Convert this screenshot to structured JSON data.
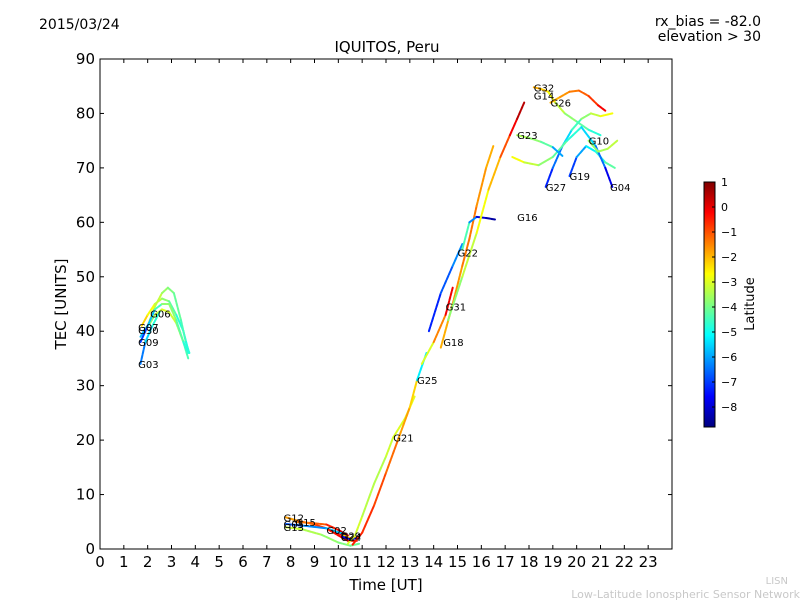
{
  "header": {
    "date": "2015/03/24",
    "rx_bias": "rx_bias = -82.0",
    "elevation": "elevation > 30"
  },
  "footer": {
    "network_short": "LISN",
    "network_full": "Low-Latitude Ionospheric Sensor Network"
  },
  "chart_data": {
    "type": "scatter",
    "title": "IQUITOS, Peru",
    "xlabel": "Time [UT]",
    "ylabel": "TEC [UNITS]",
    "xlim": [
      0,
      24
    ],
    "ylim": [
      0,
      90
    ],
    "xticks": [
      "0",
      "1",
      "2",
      "3",
      "4",
      "5",
      "6",
      "7",
      "8",
      "9",
      "10",
      "11",
      "12",
      "13",
      "14",
      "15",
      "16",
      "17",
      "18",
      "19",
      "20",
      "21",
      "22",
      "23"
    ],
    "yticks": [
      "0",
      "10",
      "20",
      "30",
      "40",
      "50",
      "60",
      "70",
      "80",
      "90"
    ],
    "colorbar": {
      "label": "Latitude",
      "range": [
        -8.8,
        1.0
      ],
      "ticks": [
        "1",
        "0",
        "−1",
        "−2",
        "−3",
        "−4",
        "−5",
        "−6",
        "−7",
        "−8"
      ],
      "tick_values": [
        1,
        0,
        -1,
        -2,
        -3,
        -4,
        -5,
        -6,
        -7,
        -8
      ],
      "colors": [
        "#00007f",
        "#0000ff",
        "#007fff",
        "#00ffff",
        "#7fff7f",
        "#ffff00",
        "#ff7f00",
        "#ff0000",
        "#7f0000"
      ]
    },
    "series": [
      {
        "name": "G30",
        "label_at": [
          1.6,
          40.2
        ],
        "points": [
          [
            1.7,
            39
          ],
          [
            1.9,
            40.5
          ],
          [
            2.1,
            41.5
          ],
          [
            2.3,
            43
          ],
          [
            2.6,
            44
          ],
          [
            2.9,
            43.5
          ],
          [
            3.2,
            41.5
          ],
          [
            3.5,
            38
          ],
          [
            3.7,
            35
          ]
        ],
        "lat": [
          -6.5,
          -5,
          -4,
          -3.5,
          -3,
          -3,
          -3.3,
          -4,
          -4.8
        ]
      },
      {
        "name": "G07",
        "label_at": [
          1.6,
          40.8
        ],
        "points": [
          [
            1.75,
            41
          ],
          [
            2.0,
            43
          ],
          [
            2.3,
            45
          ],
          [
            2.6,
            46
          ],
          [
            2.9,
            45.5
          ],
          [
            3.2,
            43
          ],
          [
            3.5,
            40
          ],
          [
            3.7,
            36.5
          ]
        ],
        "lat": [
          -2,
          -2.5,
          -3,
          -3.5,
          -4,
          -4.5,
          -5,
          -5.5
        ]
      },
      {
        "name": "G06",
        "label_at": [
          2.1,
          43.3
        ],
        "points": [
          [
            2.0,
            41
          ],
          [
            2.3,
            44.5
          ],
          [
            2.6,
            47
          ],
          [
            2.85,
            48
          ],
          [
            3.1,
            47
          ],
          [
            3.4,
            42
          ],
          [
            3.6,
            38
          ],
          [
            3.75,
            36
          ]
        ],
        "lat": [
          -2.5,
          -3,
          -3.5,
          -3.8,
          -4,
          -4.3,
          -4.6,
          -4.9
        ]
      },
      {
        "name": "G09",
        "label_at": [
          1.6,
          38.0
        ],
        "points": [
          [
            1.7,
            38
          ],
          [
            2.0,
            41
          ],
          [
            2.3,
            44
          ],
          [
            2.6,
            45
          ],
          [
            2.9,
            45
          ],
          [
            3.2,
            42
          ],
          [
            3.5,
            38
          ],
          [
            3.7,
            36
          ]
        ],
        "lat": [
          -7.5,
          -6.5,
          -5,
          -4,
          -3.5,
          -4,
          -4.5,
          -5
        ]
      },
      {
        "name": "G03",
        "label_at": [
          1.6,
          34.0
        ],
        "points": [
          [
            1.7,
            34
          ],
          [
            1.9,
            38
          ],
          [
            2.2,
            41
          ],
          [
            2.5,
            43.5
          ]
        ],
        "lat": [
          -6.8,
          -6,
          -5,
          -4.5
        ]
      },
      {
        "name": "G12",
        "label_at": [
          7.7,
          5.8
        ],
        "points": [
          [
            7.8,
            5.8
          ],
          [
            8.3,
            5.2
          ],
          [
            9.0,
            4.5
          ],
          [
            9.7,
            3.5
          ],
          [
            10.2,
            2.5
          ]
        ],
        "lat": [
          -2.0,
          -1.5,
          -1.0,
          -0.5,
          0.2
        ]
      },
      {
        "name": "G15",
        "label_at": [
          8.2,
          5.0
        ],
        "points": [
          [
            8.2,
            5.0
          ],
          [
            8.8,
            4.8
          ],
          [
            9.5,
            4.5
          ],
          [
            10.0,
            3.5
          ],
          [
            10.4,
            2.5
          ]
        ],
        "lat": [
          -1.5,
          -1.2,
          -1.0,
          0.0,
          0.6
        ]
      },
      {
        "name": "G05",
        "label_at": [
          7.7,
          4.6
        ],
        "points": [
          [
            7.8,
            4.6
          ],
          [
            8.5,
            4.3
          ],
          [
            9.5,
            3.8
          ],
          [
            10.2,
            2.8
          ]
        ],
        "lat": [
          -7.0,
          -6.5,
          -6.0,
          -5.5
        ]
      },
      {
        "name": "G13",
        "label_at": [
          7.7,
          4.0
        ],
        "points": [
          [
            7.8,
            4.0
          ],
          [
            8.5,
            3.6
          ],
          [
            9.3,
            2.6
          ],
          [
            10.0,
            1.2
          ],
          [
            10.5,
            0.6
          ],
          [
            10.9,
            1.0
          ]
        ],
        "lat": [
          -3.0,
          -3.3,
          -3.6,
          -3.8,
          -4.0,
          -4.2
        ]
      },
      {
        "name": "G02",
        "label_at": [
          9.5,
          3.5
        ],
        "points": [
          [
            9.6,
            3.5
          ],
          [
            10.0,
            2.5
          ],
          [
            10.4,
            1.5
          ],
          [
            10.8,
            1.5
          ]
        ],
        "lat": [
          -0.5,
          -0.3,
          0.0,
          0.3
        ]
      },
      {
        "name": "G29",
        "label_at": [
          10.1,
          2.5
        ],
        "points": [
          [
            10.2,
            2.5
          ],
          [
            10.5,
            2.0
          ],
          [
            10.8,
            2.2
          ]
        ],
        "lat": [
          -2.5,
          -2.0,
          -1.5
        ]
      },
      {
        "name": "G24",
        "label_at": [
          10.1,
          2.2
        ],
        "points": [
          [
            10.2,
            2.2
          ],
          [
            10.5,
            1.8
          ],
          [
            10.8,
            2.0
          ]
        ],
        "lat": [
          -8.0,
          -7.5,
          -7.0
        ]
      },
      {
        "name": "G21",
        "label_at": [
          12.3,
          20.5
        ],
        "points": [
          [
            10.4,
            1.0
          ],
          [
            10.7,
            2.5
          ],
          [
            11.0,
            6
          ],
          [
            11.5,
            12
          ],
          [
            12.0,
            17
          ],
          [
            12.3,
            20.5
          ],
          [
            12.8,
            24
          ],
          [
            13.2,
            28
          ]
        ],
        "lat": [
          -3.0,
          -3.0,
          -3.2,
          -3.5,
          -3.3,
          -3.0,
          -3.0,
          -2.8
        ]
      },
      {
        "name": "G25",
        "label_at": [
          13.3,
          31.0
        ],
        "points": [
          [
            10.6,
            0.8
          ],
          [
            11.0,
            3
          ],
          [
            11.5,
            8
          ],
          [
            12.0,
            14
          ],
          [
            12.5,
            20
          ],
          [
            13.0,
            26
          ],
          [
            13.3,
            31
          ],
          [
            13.7,
            36
          ]
        ],
        "lat": [
          -0.5,
          -0.5,
          -0.8,
          -1.0,
          -1.5,
          -2.0,
          -2.5,
          -8.0
        ]
      },
      {
        "name": "G18",
        "label_at": [
          14.4,
          38.0
        ],
        "points": [
          [
            13.5,
            34
          ],
          [
            14.0,
            38
          ],
          [
            14.5,
            43
          ],
          [
            14.8,
            48
          ]
        ],
        "lat": [
          -3.5,
          -2.5,
          -0.5,
          0.3
        ]
      },
      {
        "name": "G31",
        "label_at": [
          14.5,
          44.5
        ],
        "points": [
          [
            13.8,
            40
          ],
          [
            14.3,
            47
          ],
          [
            14.8,
            52
          ],
          [
            15.2,
            56
          ]
        ],
        "lat": [
          -7.5,
          -7.0,
          -6.5,
          -6.0
        ]
      },
      {
        "name": "G22",
        "label_at": [
          15.0,
          54.5
        ],
        "points": [
          [
            14.3,
            37
          ],
          [
            14.8,
            45
          ],
          [
            15.2,
            52
          ],
          [
            15.5,
            57
          ],
          [
            15.8,
            63
          ],
          [
            16.2,
            70
          ],
          [
            16.5,
            74
          ]
        ],
        "lat": [
          -2.0,
          -1.8,
          -1.5,
          -1.2,
          -1.5,
          -1.8,
          -2.0
        ]
      },
      {
        "name": "G16",
        "label_at": [
          17.5,
          61.0
        ],
        "points": [
          [
            15.2,
            55
          ],
          [
            15.5,
            60
          ],
          [
            15.8,
            61
          ],
          [
            16.2,
            60.8
          ],
          [
            16.6,
            60.5
          ]
        ],
        "lat": [
          -3.8,
          -5,
          -7.5,
          -8.3,
          -8.6
        ]
      },
      {
        "name": "G14",
        "label_at": [
          18.2,
          83.3
        ],
        "points": [
          [
            14.6,
            42
          ],
          [
            15.2,
            50
          ],
          [
            15.8,
            58
          ],
          [
            16.3,
            66
          ],
          [
            16.8,
            72
          ],
          [
            17.2,
            76
          ],
          [
            17.5,
            79
          ],
          [
            17.8,
            82
          ]
        ],
        "lat": [
          -4,
          -3.5,
          -3,
          -2.5,
          -1.5,
          -0.5,
          0.2,
          0.7
        ]
      },
      {
        "name": "G32",
        "label_at": [
          18.2,
          84.8
        ],
        "points": [
          [
            18.2,
            84.8
          ],
          [
            18.5,
            84.5
          ],
          [
            18.8,
            84
          ],
          [
            19.1,
            82
          ],
          [
            19.5,
            80
          ],
          [
            20.0,
            78.5
          ],
          [
            20.5,
            77
          ],
          [
            21.0,
            76
          ]
        ],
        "lat": [
          -2,
          -1.8,
          -2.5,
          -3,
          -3.5,
          -4,
          -4.5,
          -5
        ]
      },
      {
        "name": "G27",
        "label_at": [
          18.7,
          66.5
        ],
        "points": [
          [
            18.7,
            66.5
          ],
          [
            19.0,
            70
          ],
          [
            19.4,
            74
          ],
          [
            19.8,
            77
          ],
          [
            20.2,
            79
          ],
          [
            20.6,
            80
          ],
          [
            21.0,
            79.5
          ],
          [
            21.5,
            80
          ]
        ],
        "lat": [
          -7.5,
          -7,
          -6,
          -5,
          -4,
          -3.5,
          -3,
          -2.5
        ]
      },
      {
        "name": "G19",
        "label_at": [
          19.7,
          68.5
        ],
        "points": [
          [
            19.7,
            68.5
          ],
          [
            20.0,
            72
          ],
          [
            20.4,
            74
          ],
          [
            20.8,
            73
          ],
          [
            21.2,
            71
          ],
          [
            21.6,
            70
          ]
        ],
        "lat": [
          -7.5,
          -6.5,
          -5.5,
          -5,
          -4.5,
          -4
        ]
      },
      {
        "name": "G04",
        "label_at": [
          21.4,
          66.5
        ],
        "points": [
          [
            17.3,
            72
          ],
          [
            17.8,
            71
          ],
          [
            18.4,
            70.5
          ],
          [
            19.0,
            72
          ],
          [
            19.6,
            75
          ],
          [
            20.2,
            77.5
          ],
          [
            20.8,
            74
          ],
          [
            21.2,
            70
          ],
          [
            21.5,
            66.5
          ]
        ],
        "lat": [
          -2.5,
          -3,
          -3.5,
          -4,
          -4.5,
          -5,
          -6,
          -7,
          -8.5
        ]
      },
      {
        "name": "G23",
        "label_at": [
          17.5,
          76.0
        ],
        "points": [
          [
            17.5,
            76
          ],
          [
            18.0,
            75.5
          ],
          [
            18.5,
            74.8
          ],
          [
            19.0,
            73.8
          ],
          [
            19.4,
            72.2
          ]
        ],
        "lat": [
          -3.5,
          -3.5,
          -4,
          -4.5,
          -7.5
        ]
      },
      {
        "name": "G26",
        "label_at": [
          18.9,
          82.0
        ],
        "points": [
          [
            18.9,
            82
          ],
          [
            19.3,
            83
          ],
          [
            19.7,
            84
          ],
          [
            20.1,
            84.2
          ],
          [
            20.5,
            83.2
          ],
          [
            20.9,
            81.5
          ],
          [
            21.2,
            80.5
          ]
        ],
        "lat": [
          -2,
          -1.8,
          -1.5,
          -1.3,
          -1,
          -0.5,
          0.2
        ]
      },
      {
        "name": "G10",
        "label_at": [
          20.5,
          75.0
        ],
        "points": [
          [
            20.5,
            75
          ],
          [
            20.9,
            73
          ],
          [
            21.3,
            73.5
          ],
          [
            21.7,
            75
          ]
        ],
        "lat": [
          -3.8,
          -3.6,
          -3.4,
          -3.2
        ]
      }
    ]
  }
}
